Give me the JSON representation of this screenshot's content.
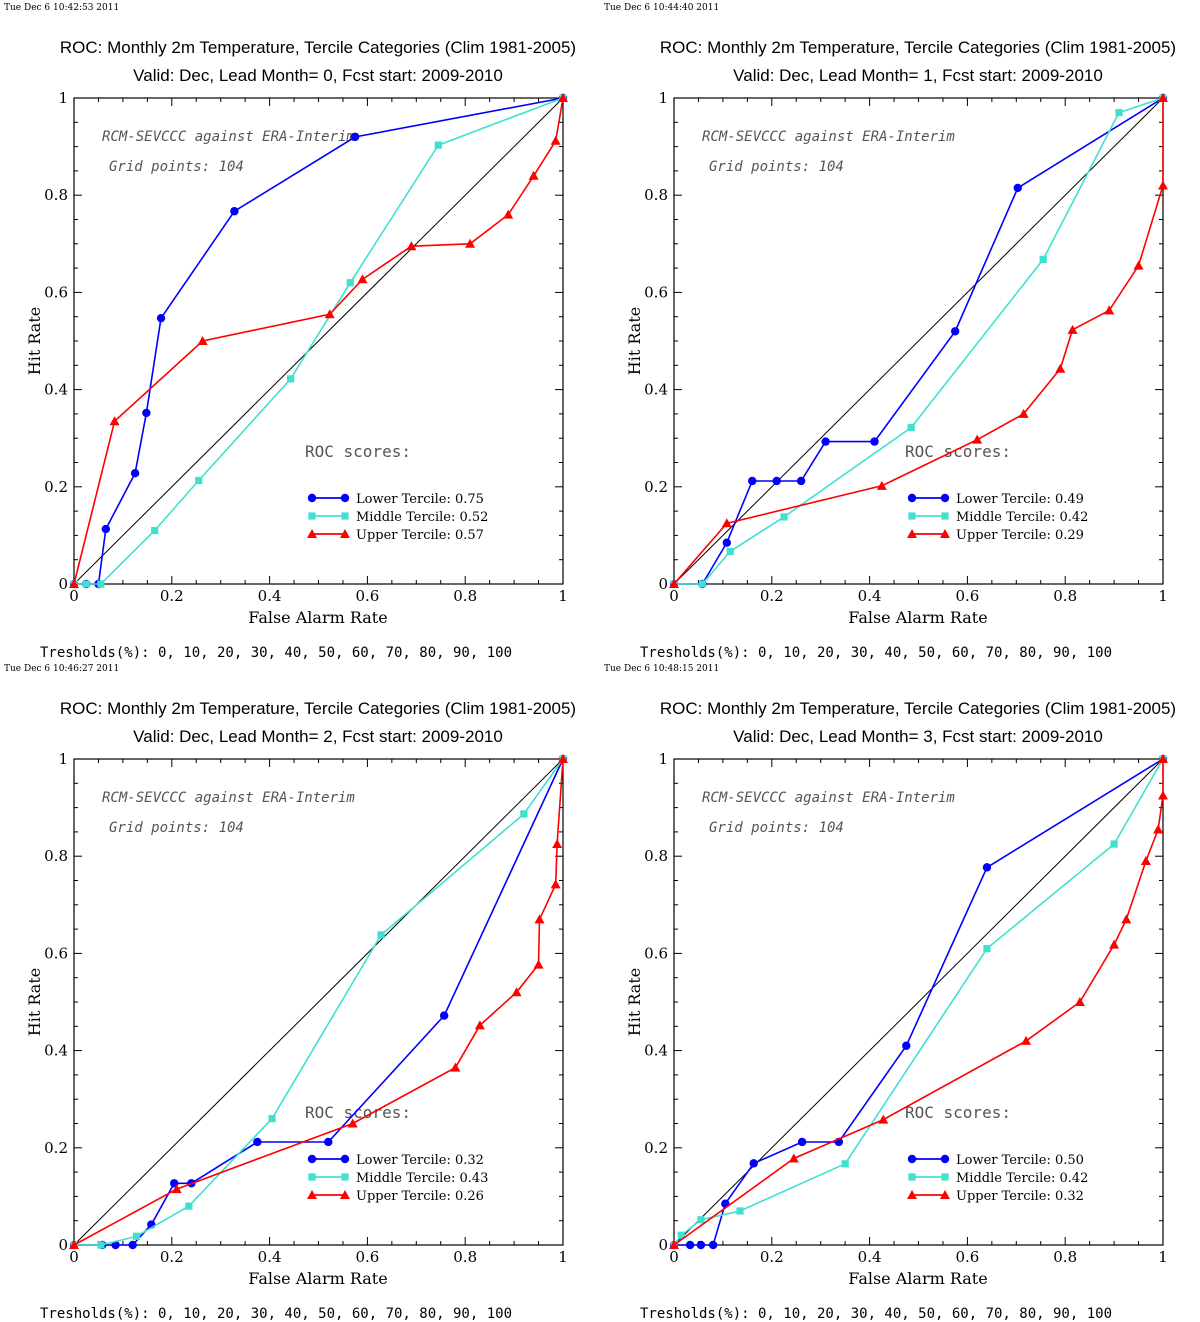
{
  "colors": {
    "lower": "#0000ff",
    "middle": "#40e0d0",
    "upper": "#ff0000",
    "diagonal": "#000000"
  },
  "chart_data": [
    {
      "type": "line",
      "timestamp": "Tue Dec  6 10:42:53 2011",
      "title": "ROC: Monthly 2m Temperature, Tercile Categories (Clim 1981-2005)",
      "subtitle": "Valid: Dec, Lead Month= 0, Fcst start: 2009-2010",
      "annotation1": "RCM-SEVCCC against ERA-Interim",
      "annotation2": "Grid points:  104",
      "scores_label": "ROC scores:",
      "xlabel": "False Alarm Rate",
      "ylabel": "Hit Rate",
      "xlim": [
        0,
        1
      ],
      "ylim": [
        0,
        1
      ],
      "xticks": [
        "0",
        "0.2",
        "0.4",
        "0.6",
        "0.8",
        "1"
      ],
      "yticks": [
        "0",
        "0.2",
        "0.4",
        "0.6",
        "0.8",
        "1"
      ],
      "thresholds": "Tresholds(%): 0, 10, 20, 30, 40, 50, 60, 70, 80, 90, 100",
      "series": [
        {
          "name": "Lower Tercile: 0.75",
          "marker": "circle",
          "x": [
            0,
            0.025,
            0.05,
            0.065,
            0.125,
            0.148,
            0.178,
            0.328,
            0.575,
            1
          ],
          "y": [
            0,
            0,
            0,
            0.113,
            0.228,
            0.352,
            0.547,
            0.767,
            0.92,
            1
          ]
        },
        {
          "name": "Middle Tercile: 0.52",
          "marker": "square",
          "x": [
            0,
            0.025,
            0.055,
            0.165,
            0.255,
            0.443,
            0.565,
            0.745,
            1
          ],
          "y": [
            0,
            0,
            0,
            0.11,
            0.213,
            0.422,
            0.62,
            0.903,
            1
          ]
        },
        {
          "name": "Upper Tercile: 0.57",
          "marker": "triangle",
          "x": [
            0,
            0.083,
            0.263,
            0.523,
            0.59,
            0.69,
            0.81,
            0.888,
            0.94,
            0.985,
            1
          ],
          "y": [
            0,
            0.335,
            0.5,
            0.555,
            0.627,
            0.695,
            0.7,
            0.76,
            0.84,
            0.912,
            1
          ]
        }
      ]
    },
    {
      "type": "line",
      "timestamp": "Tue Dec  6 10:44:40 2011",
      "title": "ROC: Monthly 2m Temperature, Tercile Categories (Clim 1981-2005)",
      "subtitle": "Valid: Dec, Lead Month= 1, Fcst start: 2009-2010",
      "annotation1": "RCM-SEVCCC against ERA-Interim",
      "annotation2": "Grid points:  104",
      "scores_label": "ROC scores:",
      "xlabel": "False Alarm Rate",
      "ylabel": "Hit Rate",
      "xlim": [
        0,
        1
      ],
      "ylim": [
        0,
        1
      ],
      "xticks": [
        "0",
        "0.2",
        "0.4",
        "0.6",
        "0.8",
        "1"
      ],
      "yticks": [
        "0",
        "0.2",
        "0.4",
        "0.6",
        "0.8",
        "1"
      ],
      "thresholds": "Tresholds(%): 0, 10, 20, 30, 40, 50, 60, 70, 80, 90, 100",
      "series": [
        {
          "name": "Lower Tercile: 0.49",
          "marker": "circle",
          "x": [
            0,
            0.058,
            0.108,
            0.16,
            0.21,
            0.26,
            0.31,
            0.41,
            0.575,
            0.703,
            1
          ],
          "y": [
            0,
            0,
            0.085,
            0.212,
            0.212,
            0.212,
            0.293,
            0.293,
            0.52,
            0.815,
            1
          ]
        },
        {
          "name": "Middle Tercile: 0.42",
          "marker": "square",
          "x": [
            0,
            0.058,
            0.115,
            0.225,
            0.485,
            0.755,
            0.91,
            1
          ],
          "y": [
            0,
            0,
            0.067,
            0.138,
            0.322,
            0.668,
            0.97,
            1
          ]
        },
        {
          "name": "Upper Tercile: 0.29",
          "marker": "triangle",
          "x": [
            0,
            0.108,
            0.425,
            0.62,
            0.715,
            0.79,
            0.815,
            0.89,
            0.95,
            1,
            1
          ],
          "y": [
            0,
            0.125,
            0.202,
            0.297,
            0.35,
            0.443,
            0.523,
            0.563,
            0.655,
            0.82,
            1
          ]
        }
      ]
    },
    {
      "type": "line",
      "timestamp": "Tue Dec  6 10:46:27 2011",
      "title": "ROC: Monthly 2m Temperature, Tercile Categories (Clim 1981-2005)",
      "subtitle": "Valid: Dec, Lead Month= 2, Fcst start: 2009-2010",
      "annotation1": "RCM-SEVCCC against ERA-Interim",
      "annotation2": "Grid points:  104",
      "scores_label": "ROC scores:",
      "xlabel": "False Alarm Rate",
      "ylabel": "Hit Rate",
      "xlim": [
        0,
        1
      ],
      "ylim": [
        0,
        1
      ],
      "xticks": [
        "0",
        "0.2",
        "0.4",
        "0.6",
        "0.8",
        "1"
      ],
      "yticks": [
        "0",
        "0.2",
        "0.4",
        "0.6",
        "0.8",
        "1"
      ],
      "thresholds": "Tresholds(%): 0, 10, 20, 30, 40, 50, 60, 70, 80, 90, 100",
      "series": [
        {
          "name": "Lower Tercile: 0.32",
          "marker": "circle",
          "x": [
            0,
            0.058,
            0.085,
            0.12,
            0.158,
            0.205,
            0.24,
            0.375,
            0.52,
            0.757,
            1
          ],
          "y": [
            0,
            0,
            0,
            0,
            0.042,
            0.127,
            0.127,
            0.212,
            0.212,
            0.472,
            1
          ]
        },
        {
          "name": "Middle Tercile: 0.43",
          "marker": "square",
          "x": [
            0,
            0.055,
            0.128,
            0.235,
            0.405,
            0.628,
            0.92,
            1
          ],
          "y": [
            0,
            0,
            0.018,
            0.08,
            0.26,
            0.638,
            0.887,
            1
          ]
        },
        {
          "name": "Upper Tercile: 0.26",
          "marker": "triangle",
          "x": [
            0,
            0.21,
            0.57,
            0.78,
            0.83,
            0.905,
            0.95,
            0.952,
            0.985,
            0.988,
            1
          ],
          "y": [
            0,
            0.115,
            0.25,
            0.365,
            0.452,
            0.52,
            0.577,
            0.67,
            0.742,
            0.825,
            1
          ]
        }
      ]
    },
    {
      "type": "line",
      "timestamp": "Tue Dec  6 10:48:15 2011",
      "title": "ROC: Monthly 2m Temperature, Tercile Categories (Clim 1981-2005)",
      "subtitle": "Valid: Dec, Lead Month= 3, Fcst start: 2009-2010",
      "annotation1": "RCM-SEVCCC against ERA-Interim",
      "annotation2": "Grid points:  104",
      "scores_label": "ROC scores:",
      "xlabel": "False Alarm Rate",
      "ylabel": "Hit Rate",
      "xlim": [
        0,
        1
      ],
      "ylim": [
        0,
        1
      ],
      "xticks": [
        "0",
        "0.2",
        "0.4",
        "0.6",
        "0.8",
        "1"
      ],
      "yticks": [
        "0",
        "0.2",
        "0.4",
        "0.6",
        "0.8",
        "1"
      ],
      "thresholds": "Tresholds(%): 0, 10, 20, 30, 40, 50, 60, 70, 80, 90, 100",
      "series": [
        {
          "name": "Lower Tercile: 0.50",
          "marker": "circle",
          "x": [
            0,
            0.033,
            0.055,
            0.08,
            0.105,
            0.163,
            0.262,
            0.337,
            0.475,
            0.64,
            1
          ],
          "y": [
            0,
            0,
            0,
            0,
            0.085,
            0.168,
            0.212,
            0.212,
            0.41,
            0.777,
            1
          ]
        },
        {
          "name": "Middle Tercile: 0.42",
          "marker": "square",
          "x": [
            0,
            0.015,
            0.055,
            0.135,
            0.35,
            0.64,
            0.9,
            1
          ],
          "y": [
            0,
            0.02,
            0.052,
            0.07,
            0.167,
            0.61,
            0.825,
            1
          ]
        },
        {
          "name": "Upper Tercile: 0.32",
          "marker": "triangle",
          "x": [
            0,
            0.245,
            0.428,
            0.72,
            0.83,
            0.9,
            0.925,
            0.965,
            0.99,
            1,
            1
          ],
          "y": [
            0,
            0.178,
            0.258,
            0.42,
            0.5,
            0.618,
            0.67,
            0.79,
            0.855,
            0.925,
            1
          ]
        }
      ]
    }
  ]
}
